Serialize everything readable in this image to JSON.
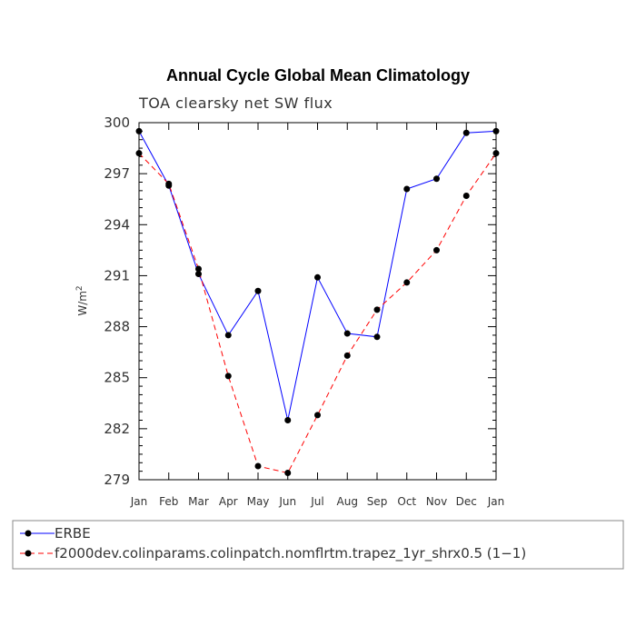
{
  "chart_data": {
    "type": "line",
    "title": "Annual Cycle Global Mean Climatology",
    "subtitle": "TOA clearsky net SW flux",
    "xlabel": "",
    "ylabel": "W/m",
    "ylabel_superscript": "2",
    "categories": [
      "Jan",
      "Feb",
      "Mar",
      "Apr",
      "May",
      "Jun",
      "Jul",
      "Aug",
      "Sep",
      "Oct",
      "Nov",
      "Dec",
      "Jan"
    ],
    "ylim": [
      279,
      300
    ],
    "yticks": [
      279,
      282,
      285,
      288,
      291,
      294,
      297,
      300
    ],
    "series": [
      {
        "name": "ERBE",
        "color": "#0000ff",
        "dash": "solid",
        "values": [
          299.5,
          296.3,
          291.1,
          287.5,
          290.1,
          282.5,
          290.9,
          287.6,
          287.4,
          296.1,
          296.7,
          299.4,
          299.5
        ]
      },
      {
        "name": "f2000dev.colinparams.colinpatch.nomflrtm.trapez_1yr_shrx0.5 (1−1)",
        "color": "#ff0000",
        "dash": "dashed",
        "values": [
          298.2,
          296.4,
          291.4,
          285.1,
          279.8,
          279.4,
          282.8,
          286.3,
          289.0,
          290.6,
          292.5,
          295.7,
          298.2
        ]
      }
    ],
    "marker_color": "#000000",
    "grid": false,
    "legend_position": "bottom"
  }
}
